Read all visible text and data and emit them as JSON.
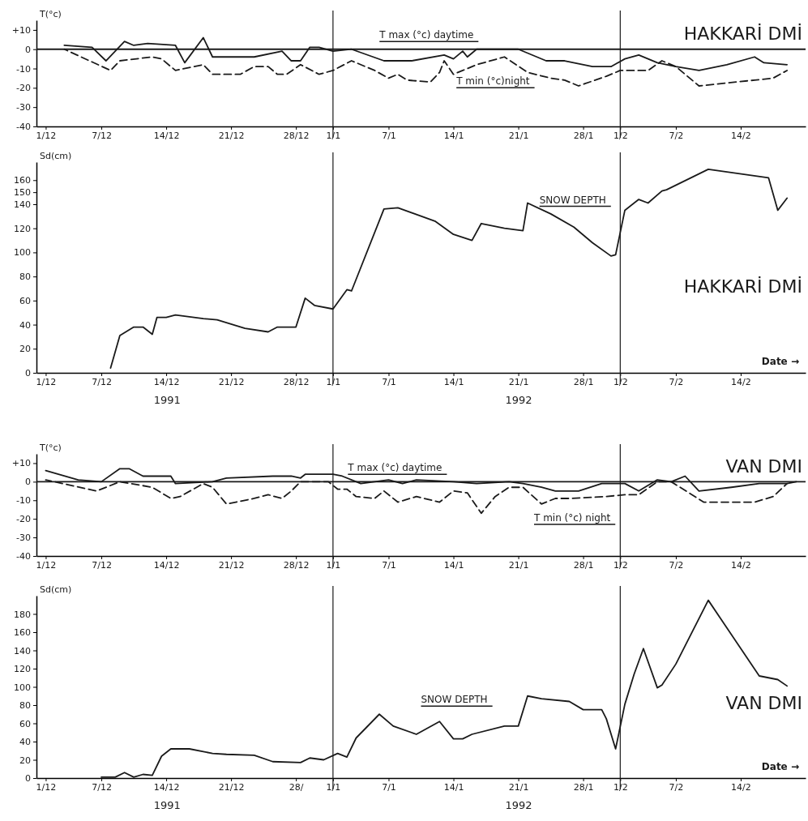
{
  "chart_data": [
    {
      "type": "line",
      "title": "HAKKARİ DMİ",
      "ylabel": "T(°c)",
      "xlim": [
        "1991-11-30",
        "1992-02-21"
      ],
      "ylim": [
        -40,
        15
      ],
      "xticks": [
        {
          "value": "1991-12-01",
          "label": "1/12"
        },
        {
          "value": "1991-12-07",
          "label": "7/12"
        },
        {
          "value": "1991-12-14",
          "label": "14/12"
        },
        {
          "value": "1991-12-21",
          "label": "21/12"
        },
        {
          "value": "1991-12-28",
          "label": "28/12"
        },
        {
          "value": "1992-01-01",
          "label": "1/1"
        },
        {
          "value": "1992-01-07",
          "label": "7/1"
        },
        {
          "value": "1992-01-14",
          "label": "14/1"
        },
        {
          "value": "1992-01-21",
          "label": "21/1"
        },
        {
          "value": "1992-01-28",
          "label": "28/1"
        },
        {
          "value": "1992-02-01",
          "label": "1/2"
        },
        {
          "value": "1992-02-07",
          "label": "7/2"
        },
        {
          "value": "1992-02-14",
          "label": "14/2"
        }
      ],
      "yticks": [
        {
          "value": 10,
          "label": "+10"
        },
        0,
        -10,
        -20,
        -30,
        -40
      ],
      "series": [
        {
          "color": "#1a1a1a",
          "line_style": "solid",
          "x": [
            "1991-12-03",
            "1991-12-06",
            "1991-12-07T12:00",
            "1991-12-09T12:00",
            "1991-12-10T12:00",
            "1991-12-12",
            "1991-12-15",
            "1991-12-16",
            "1991-12-18",
            "1991-12-19",
            "1991-12-23T12:00",
            "1991-12-26T12:00",
            "1991-12-27T12:00",
            "1991-12-28T12:00",
            "1991-12-29T12:00",
            "1991-12-30T12:00",
            "1992-01-01",
            "1992-01-03",
            "1992-01-06T12:00",
            "1992-01-09T12:00",
            "1992-01-13",
            "1992-01-14",
            "1992-01-15",
            "1992-01-15T12:00",
            "1992-01-16T12:00",
            "1992-01-21",
            "1992-01-24",
            "1992-01-26",
            "1992-01-29",
            "1992-01-31",
            "1992-02-01T12:00",
            "1992-02-03",
            "1992-02-05",
            "1992-02-07",
            "1992-02-09T12:00",
            "1992-02-12T12:00",
            "1992-02-15T12:00",
            "1992-02-16T12:00",
            "1992-02-19"
          ],
          "values": [
            2,
            1,
            -6,
            4,
            2,
            3,
            2,
            -7,
            6,
            -4,
            -4,
            -1,
            -6,
            -6,
            1,
            1,
            -1,
            0,
            -6,
            -6,
            -3,
            -5,
            -1,
            -4,
            0,
            0,
            -6,
            -6,
            -9,
            -9,
            -5,
            -3,
            -7,
            -9,
            -11,
            -8,
            -4,
            -7,
            -8
          ]
        },
        {
          "color": "#1a1a1a",
          "line_style": "dashed",
          "x": [
            "1991-12-03",
            "1991-12-08",
            "1991-12-09",
            "1991-12-12T12:00",
            "1991-12-13T12:00",
            "1991-12-15",
            "1991-12-18",
            "1991-12-19",
            "1991-12-22",
            "1991-12-23T12:00",
            "1991-12-25",
            "1991-12-26",
            "1991-12-27",
            "1991-12-28T12:00",
            "1991-12-30T12:00",
            "1992-01-01",
            "1992-01-03",
            "1992-01-05T12:00",
            "1992-01-07",
            "1992-01-08",
            "1992-01-09",
            "1992-01-11T12:00",
            "1992-01-12T12:00",
            "1992-01-13",
            "1992-01-14",
            "1992-01-15",
            "1992-01-16T12:00",
            "1992-01-19T12:00",
            "1992-01-22",
            "1992-01-24T12:00",
            "1992-01-26",
            "1992-01-27T12:00",
            "1992-01-30T12:00",
            "1992-02-01",
            "1992-02-04",
            "1992-02-05T12:00",
            "1992-02-07",
            "1992-02-09T12:00",
            "1992-02-15T12:00",
            "1992-02-17T12:00",
            "1992-02-19"
          ],
          "values": [
            0,
            -11,
            -6,
            -4,
            -5,
            -11,
            -8,
            -13,
            -13,
            -9,
            -9,
            -13,
            -13,
            -8,
            -13,
            -11,
            -6,
            -11,
            -15,
            -13,
            -16,
            -17,
            -12,
            -6,
            -13,
            -11,
            -8,
            -4,
            -12,
            -15,
            -16,
            -19,
            -14,
            -11,
            -11,
            -6,
            -9,
            -19,
            -16,
            -15,
            -11
          ]
        }
      ],
      "ref_lines": [
        {
          "axis": "y",
          "value": 0
        },
        {
          "axis": "x",
          "value": "1992-01-01"
        },
        {
          "axis": "x",
          "value": "1992-02-01"
        }
      ],
      "annotations": [
        "T max (°c)  daytime",
        "T min (°c)night"
      ]
    },
    {
      "type": "line",
      "title": "HAKKARİ DMİ",
      "ylabel": "Sd(cm)",
      "xlabel": "Date →",
      "xlim": [
        "1991-11-30",
        "1992-02-21"
      ],
      "ylim": [
        0,
        175
      ],
      "xticks": [
        {
          "value": "1991-12-01",
          "label": "1/12"
        },
        {
          "value": "1991-12-07",
          "label": "7/12"
        },
        {
          "value": "1991-12-14",
          "label": "14/12"
        },
        {
          "value": "1991-12-21",
          "label": "21/12"
        },
        {
          "value": "1991-12-28",
          "label": "28/12"
        },
        {
          "value": "1992-01-01",
          "label": "1/1"
        },
        {
          "value": "1992-01-07",
          "label": "7/1"
        },
        {
          "value": "1992-01-14",
          "label": "14/1"
        },
        {
          "value": "1992-01-21",
          "label": "21/1"
        },
        {
          "value": "1992-01-28",
          "label": "28/1"
        },
        {
          "value": "1992-02-01",
          "label": "1/2"
        },
        {
          "value": "1992-02-07",
          "label": "7/2"
        },
        {
          "value": "1992-02-14",
          "label": "14/2"
        }
      ],
      "yticks": [
        0,
        20,
        40,
        60,
        80,
        100,
        120,
        140,
        150,
        160
      ],
      "series": [
        {
          "color": "#1a1a1a",
          "line_style": "solid",
          "x": [
            "1991-12-08",
            "1991-12-09",
            "1991-12-10T12:00",
            "1991-12-11T12:00",
            "1991-12-12T12:00",
            "1991-12-13",
            "1991-12-14",
            "1991-12-15",
            "1991-12-18",
            "1991-12-19T12:00",
            "1991-12-22T12:00",
            "1991-12-25",
            "1991-12-26",
            "1991-12-28",
            "1991-12-29",
            "1991-12-30",
            "1992-01-01",
            "1992-01-02T12:00",
            "1992-01-03",
            "1992-01-06T12:00",
            "1992-01-08",
            "1992-01-12",
            "1992-01-14",
            "1992-01-16",
            "1992-01-17",
            "1992-01-19T12:00",
            "1992-01-21T12:00",
            "1992-01-22",
            "1992-01-24T12:00",
            "1992-01-27",
            "1992-01-29",
            "1992-01-31",
            "1992-01-31T12:00",
            "1992-02-01T12:00",
            "1992-02-03",
            "1992-02-04",
            "1992-02-05T12:00",
            "1992-02-06",
            "1992-02-10T12:00",
            "1992-02-17",
            "1992-02-18",
            "1992-02-19"
          ],
          "values": [
            4,
            31,
            38,
            38,
            32,
            46,
            46,
            48,
            45,
            44,
            37,
            34,
            38,
            38,
            62,
            56,
            53,
            69,
            68,
            136,
            137,
            126,
            115,
            110,
            124,
            120,
            118,
            141,
            132,
            121,
            108,
            97,
            98,
            135,
            144,
            141,
            151,
            152,
            169,
            162,
            135,
            145
          ]
        }
      ],
      "ref_lines": [
        {
          "axis": "x",
          "value": "1992-01-01"
        },
        {
          "axis": "x",
          "value": "1992-02-01"
        }
      ],
      "annotations": [
        "SNOW DEPTH",
        "1991",
        "1992"
      ]
    },
    {
      "type": "line",
      "title": "VAN DMI",
      "ylabel": "T(°c)",
      "xlim": [
        "1991-11-30",
        "1992-02-21"
      ],
      "ylim": [
        -40,
        15
      ],
      "xticks": [
        {
          "value": "1991-12-01",
          "label": "1/12"
        },
        {
          "value": "1991-12-07",
          "label": "7/12"
        },
        {
          "value": "1991-12-14",
          "label": "14/12"
        },
        {
          "value": "1991-12-21",
          "label": "21/12"
        },
        {
          "value": "1991-12-28",
          "label": "28/12"
        },
        {
          "value": "1992-01-01",
          "label": "1/1"
        },
        {
          "value": "1992-01-07",
          "label": "7/1"
        },
        {
          "value": "1992-01-14",
          "label": "14/1"
        },
        {
          "value": "1992-01-21",
          "label": "21/1"
        },
        {
          "value": "1992-01-28",
          "label": "28/1"
        },
        {
          "value": "1992-02-01",
          "label": "1/2"
        },
        {
          "value": "1992-02-07",
          "label": "7/2"
        },
        {
          "value": "1992-02-14",
          "label": "14/2"
        }
      ],
      "yticks": [
        {
          "value": 10,
          "label": "+10"
        },
        0,
        -10,
        -20,
        -30,
        -40
      ],
      "series": [
        {
          "color": "#1a1a1a",
          "line_style": "solid",
          "x": [
            "1991-12-01",
            "1991-12-04T12:00",
            "1991-12-07",
            "1991-12-09",
            "1991-12-10",
            "1991-12-11T12:00",
            "1991-12-14T12:00",
            "1991-12-15",
            "1991-12-19",
            "1991-12-20T12:00",
            "1991-12-25T12:00",
            "1991-12-27T12:00",
            "1991-12-28T12:00",
            "1991-12-29",
            "1992-01-01",
            "1992-01-02",
            "1992-01-04",
            "1992-01-07",
            "1992-01-08T12:00",
            "1992-01-10",
            "1992-01-14",
            "1992-01-16T12:00",
            "1992-01-20",
            "1992-01-21T12:00",
            "1992-01-23T12:00",
            "1992-01-25",
            "1992-01-27T12:00",
            "1992-01-30",
            "1992-02-01T12:00",
            "1992-02-03",
            "1992-02-05",
            "1992-02-06T12:00",
            "1992-02-08",
            "1992-02-09T12:00",
            "1992-02-13",
            "1992-02-16",
            "1992-02-19",
            "1992-02-20"
          ],
          "values": [
            6,
            1,
            0,
            7,
            7,
            3,
            3,
            -1,
            0,
            2,
            3,
            3,
            2,
            4,
            4,
            3,
            -1,
            1,
            -1,
            1,
            0,
            -1,
            0,
            -1,
            -3,
            -5,
            -5,
            -1,
            -1,
            -5,
            1,
            0,
            3,
            -5,
            -3,
            -1,
            -1,
            0
          ]
        },
        {
          "color": "#1a1a1a",
          "line_style": "dashed",
          "x": [
            "1991-12-01",
            "1991-12-06T12:00",
            "1991-12-09",
            "1991-12-12T12:00",
            "1991-12-14T12:00",
            "1991-12-15T12:00",
            "1991-12-18",
            "1991-12-19",
            "1991-12-20T12:00",
            "1991-12-23T12:00",
            "1991-12-25",
            "1991-12-26T12:00",
            "1991-12-27T12:00",
            "1991-12-28T12:00",
            "1991-12-31T12:00",
            "1992-01-01T12:00",
            "1992-01-02T12:00",
            "1992-01-03T12:00",
            "1992-01-05T12:00",
            "1992-01-06T12:00",
            "1992-01-08",
            "1992-01-10",
            "1992-01-12T12:00",
            "1992-01-14",
            "1992-01-15T12:00",
            "1992-01-17",
            "1992-01-18T12:00",
            "1992-01-20",
            "1992-01-21T12:00",
            "1992-01-23T12:00",
            "1992-01-25",
            "1992-01-26T12:00",
            "1992-01-30T12:00",
            "1992-02-01T12:00",
            "1992-02-03",
            "1992-02-05",
            "1992-02-06T12:00",
            "1992-02-10",
            "1992-02-15T12:00",
            "1992-02-17T12:00",
            "1992-02-19"
          ],
          "values": [
            1,
            -5,
            0,
            -3,
            -9,
            -8,
            -1,
            -3,
            -12,
            -9,
            -7,
            -9,
            -5,
            0,
            0,
            -4,
            -4,
            -8,
            -9,
            -5,
            -11,
            -8,
            -11,
            -5,
            -6,
            -17,
            -8,
            -3,
            -3,
            -12,
            -9,
            -9,
            -8,
            -7,
            -7,
            0,
            0,
            -11,
            -11,
            -8,
            -1
          ]
        }
      ],
      "ref_lines": [
        {
          "axis": "y",
          "value": 0
        },
        {
          "axis": "x",
          "value": "1992-01-01"
        },
        {
          "axis": "x",
          "value": "1992-02-01"
        }
      ],
      "annotations": [
        "T max (°c) daytime",
        "T min (°c) night"
      ]
    },
    {
      "type": "line",
      "title": "VAN DMI",
      "ylabel": "Sd(cm)",
      "xlabel": "Date →",
      "xlim": [
        "1991-11-30",
        "1992-02-21"
      ],
      "ylim": [
        0,
        200
      ],
      "xticks": [
        {
          "value": "1991-12-01",
          "label": "1/12"
        },
        {
          "value": "1991-12-07",
          "label": "7/12"
        },
        {
          "value": "1991-12-14",
          "label": "14/12"
        },
        {
          "value": "1991-12-21",
          "label": "21/12"
        },
        {
          "value": "1991-12-28",
          "label": "28/"
        },
        {
          "value": "1992-01-01",
          "label": "1/1"
        },
        {
          "value": "1992-01-07",
          "label": "7/1"
        },
        {
          "value": "1992-01-14",
          "label": "14/1"
        },
        {
          "value": "1992-01-21",
          "label": "21/1"
        },
        {
          "value": "1992-01-28",
          "label": "28/1"
        },
        {
          "value": "1992-02-01",
          "label": "1/2"
        },
        {
          "value": "1992-02-07",
          "label": "7/2"
        },
        {
          "value": "1992-02-14",
          "label": "14/2"
        }
      ],
      "yticks": [
        0,
        20,
        40,
        60,
        80,
        100,
        120,
        140,
        160,
        180
      ],
      "series": [
        {
          "color": "#1a1a1a",
          "line_style": "solid",
          "x": [
            "1991-12-07",
            "1991-12-08T12:00",
            "1991-12-09T12:00",
            "1991-12-10T12:00",
            "1991-12-11T12:00",
            "1991-12-12T12:00",
            "1991-12-13T12:00",
            "1991-12-14T12:00",
            "1991-12-16T12:00",
            "1991-12-19",
            "1991-12-20T12:00",
            "1991-12-23T12:00",
            "1991-12-25T12:00",
            "1991-12-28T12:00",
            "1991-12-29T12:00",
            "1991-12-31",
            "1992-01-01T12:00",
            "1992-01-02T12:00",
            "1992-01-03T12:00",
            "1992-01-06",
            "1992-01-07T12:00",
            "1992-01-10",
            "1992-01-12T12:00",
            "1992-01-14",
            "1992-01-15",
            "1992-01-16",
            "1992-01-19T12:00",
            "1992-01-21",
            "1992-01-22",
            "1992-01-23T12:00",
            "1992-01-26T12:00",
            "1992-01-28",
            "1992-01-30",
            "1992-01-30T12:00",
            "1992-01-31T12:00",
            "1992-02-01T12:00",
            "1992-02-02T12:00",
            "1992-02-03T12:00",
            "1992-02-05",
            "1992-02-05T12:00",
            "1992-02-07",
            "1992-02-10T12:00",
            "1992-02-16",
            "1992-02-18",
            "1992-02-19"
          ],
          "values": [
            1,
            1,
            6,
            1,
            4,
            3,
            24,
            32,
            32,
            27,
            26,
            25,
            18,
            17,
            22,
            20,
            27,
            23,
            44,
            70,
            57,
            48,
            62,
            43,
            43,
            48,
            57,
            57,
            90,
            87,
            84,
            75,
            75,
            65,
            32,
            81,
            114,
            142,
            99,
            102,
            125,
            195,
            112,
            108,
            101
          ]
        }
      ],
      "ref_lines": [
        {
          "axis": "x",
          "value": "1992-01-01"
        },
        {
          "axis": "x",
          "value": "1992-02-01"
        }
      ],
      "annotations": [
        "SNOW DEPTH",
        "1991",
        "1992"
      ]
    }
  ]
}
